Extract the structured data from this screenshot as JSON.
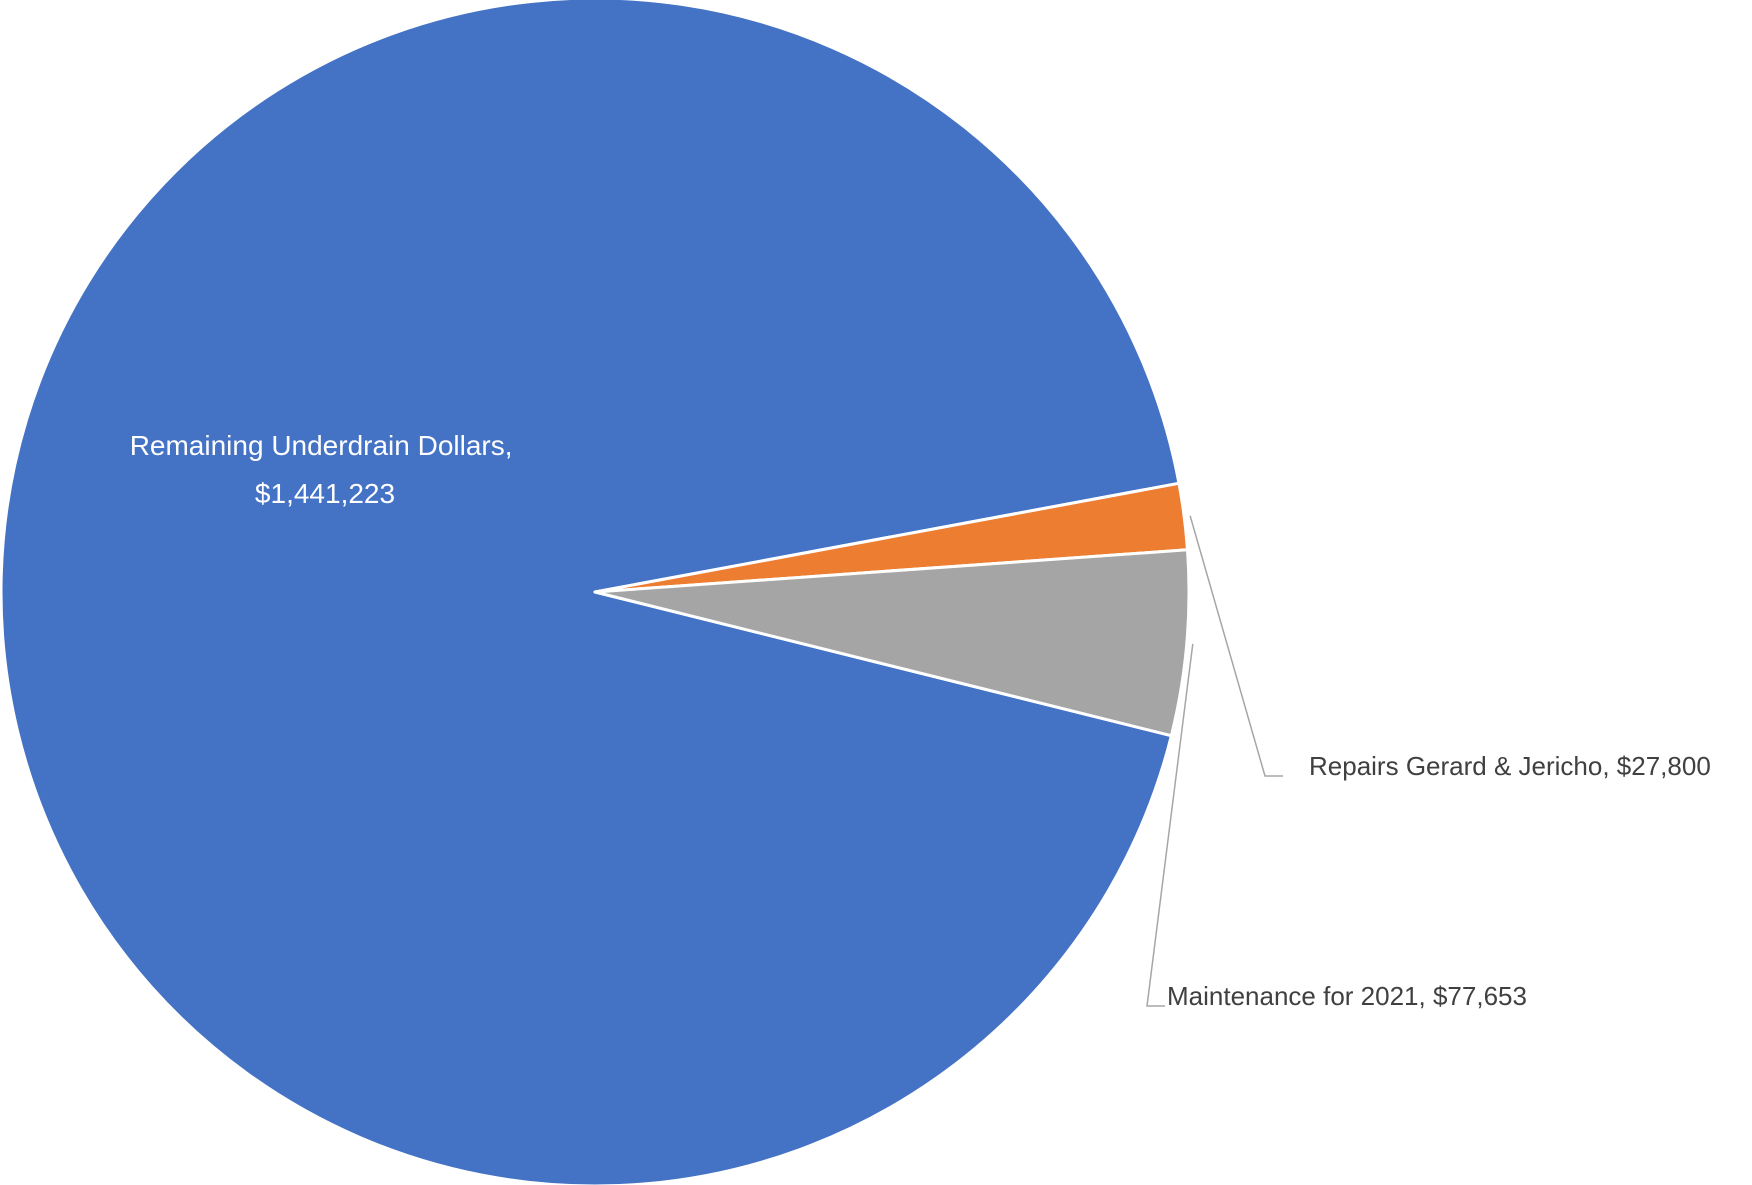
{
  "chart_data": {
    "type": "pie",
    "title": "",
    "slices": [
      {
        "label": "Remaining Underdrain Dollars",
        "value_text": "$1,441,223",
        "value": 1441223,
        "color": "#4472C4"
      },
      {
        "label": "Repairs Gerard & Jericho",
        "value_text": "$27,800",
        "value": 27800,
        "color": "#ED7D31"
      },
      {
        "label": "Maintenance for 2021",
        "value_text": "$77,653",
        "value": 77653,
        "color": "#A5A5A5"
      }
    ],
    "legend": "none",
    "data_labels": "category-and-value"
  }
}
